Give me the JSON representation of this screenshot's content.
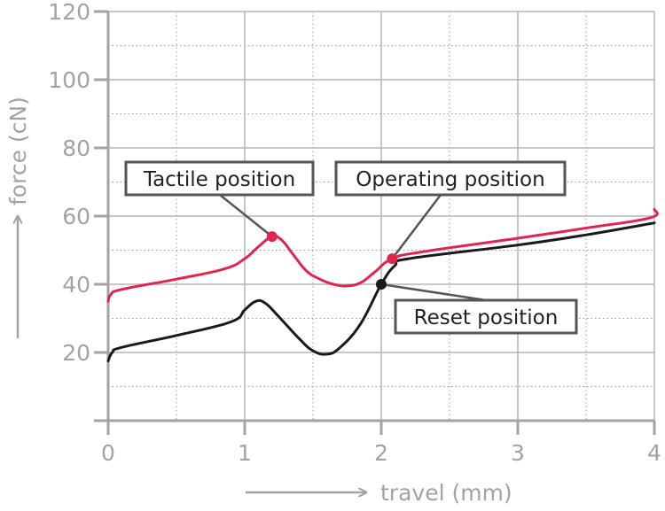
{
  "chart_data": {
    "type": "line",
    "xlabel": "travel (mm)",
    "ylabel": "force (cN)",
    "xlim": [
      0,
      4
    ],
    "ylim": [
      0,
      120
    ],
    "x_ticks": [
      "0",
      "1",
      "2",
      "3",
      "4"
    ],
    "y_ticks": [
      "20",
      "40",
      "60",
      "80",
      "100",
      "120"
    ],
    "grid": true,
    "series": [
      {
        "color": "#e0264f",
        "points": [
          [
            0,
            35
          ],
          [
            0.02,
            37
          ],
          [
            0.1,
            38.5
          ],
          [
            0.5,
            41.5
          ],
          [
            0.85,
            44.5
          ],
          [
            1.0,
            47.5
          ],
          [
            1.1,
            51
          ],
          [
            1.2,
            54
          ],
          [
            1.27,
            53
          ],
          [
            1.35,
            49
          ],
          [
            1.45,
            44
          ],
          [
            1.55,
            41.5
          ],
          [
            1.65,
            40
          ],
          [
            1.75,
            39.5
          ],
          [
            1.85,
            40.5
          ],
          [
            1.95,
            43.5
          ],
          [
            2.08,
            47.5
          ],
          [
            2.3,
            49.5
          ],
          [
            3.0,
            53.5
          ],
          [
            3.5,
            56.5
          ],
          [
            3.97,
            59.5
          ],
          [
            4.0,
            62
          ]
        ]
      },
      {
        "color": "#1a1a1a",
        "points": [
          [
            0,
            17.5
          ],
          [
            0.03,
            20
          ],
          [
            0.1,
            21.5
          ],
          [
            0.5,
            25
          ],
          [
            0.9,
            29
          ],
          [
            1.0,
            32.5
          ],
          [
            1.08,
            35
          ],
          [
            1.15,
            34.5
          ],
          [
            1.25,
            30.5
          ],
          [
            1.4,
            24
          ],
          [
            1.5,
            20.5
          ],
          [
            1.6,
            19.5
          ],
          [
            1.7,
            21.5
          ],
          [
            1.85,
            28.5
          ],
          [
            2.0,
            40
          ],
          [
            2.1,
            45.5
          ],
          [
            2.2,
            47.5
          ],
          [
            3.0,
            51.5
          ],
          [
            3.5,
            54.5
          ],
          [
            4.0,
            58
          ]
        ]
      }
    ],
    "markers": [
      {
        "x": 1.2,
        "y": 54,
        "color": "#e0264f"
      },
      {
        "x": 2.08,
        "y": 47.5,
        "color": "#e0264f"
      },
      {
        "x": 2.0,
        "y": 40,
        "color": "#1a1a1a"
      }
    ],
    "annotations": [
      {
        "text": "Tactile position",
        "target_x": 1.2,
        "target_y": 54
      },
      {
        "text": "Operating position",
        "target_x": 2.08,
        "target_y": 47.5
      },
      {
        "text": "Reset position",
        "target_x": 2.0,
        "target_y": 40
      }
    ]
  }
}
